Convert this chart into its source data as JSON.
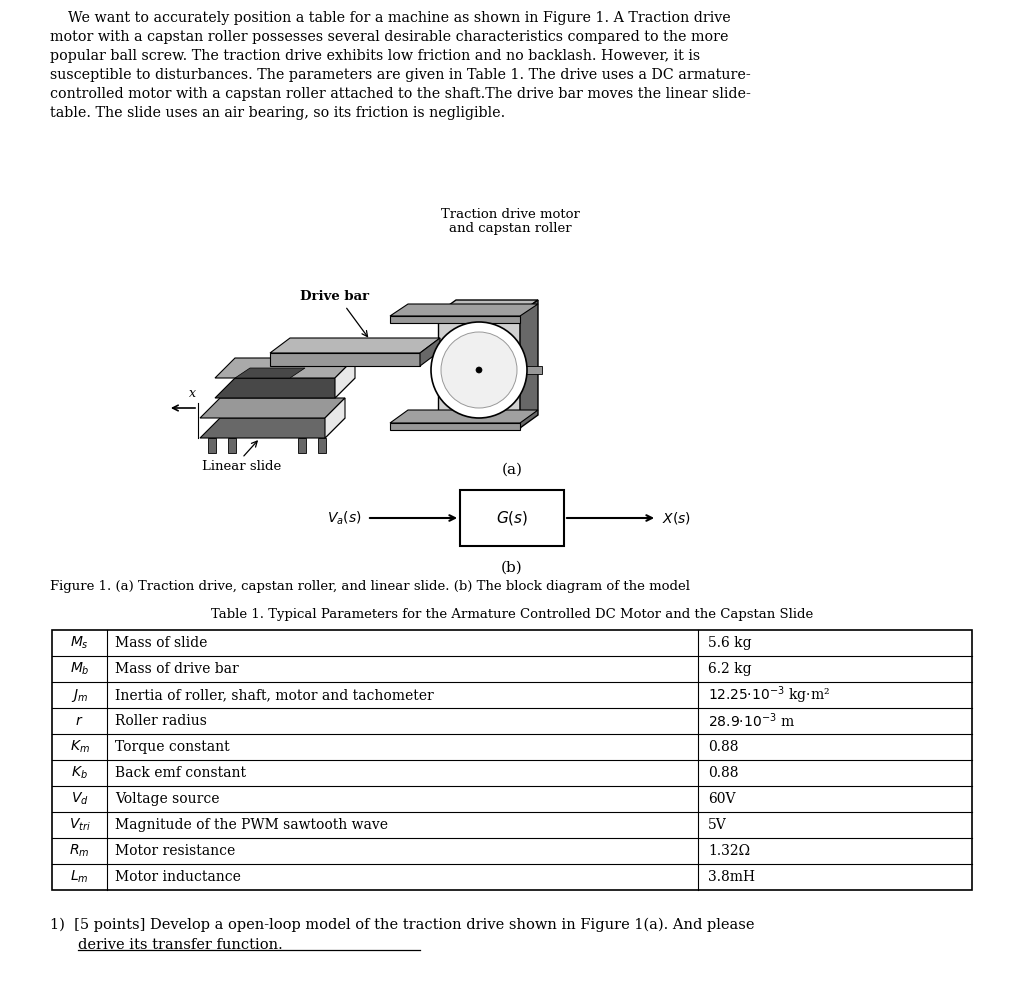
{
  "bg_color": "#ffffff",
  "text_color": "#000000",
  "para_lines": [
    "    We want to accurately position a table for a machine as shown in Figure 1. A Traction drive",
    "motor with a capstan roller possesses several desirable characteristics compared to the more",
    "popular ball screw. The traction drive exhibits low friction and no backlash. However, it is",
    "susceptible to disturbances. The parameters are given in Table 1. The drive uses a DC armature-",
    "controlled motor with a capstan roller attached to the shaft.The drive bar moves the linear slide-",
    "table. The slide uses an air bearing, so its friction is negligible."
  ],
  "traction_line1": "Traction drive motor",
  "traction_line2": "and capstan roller",
  "drive_bar_label": "Drive bar",
  "linear_slide_label": "Linear slide",
  "x_label": "x",
  "label_a": "(a)",
  "label_b": "(b)",
  "fig_caption": "Figure 1. (a) Traction drive, capstan roller, and linear slide. (b) The block diagram of the model",
  "block_input": "$V_a(s)$",
  "block_gs": "$G(s)$",
  "block_output": "$X(s)$",
  "table_title": "Table 1. Typical Parameters for the Armature Controlled DC Motor and the Capstan Slide",
  "table_rows": [
    [
      "$M_s$",
      "Mass of slide",
      "5.6 kg"
    ],
    [
      "$M_b$",
      "Mass of drive bar",
      "6.2 kg"
    ],
    [
      "$J_m$",
      "Inertia of roller, shaft, motor and tachometer",
      "$12.25{\\cdot}10^{-3}$ kg·m²"
    ],
    [
      "$r$",
      "Roller radius",
      "$28.9{\\cdot}10^{-3}$ m"
    ],
    [
      "$K_m$",
      "Torque constant",
      "0.88"
    ],
    [
      "$K_b$",
      "Back emf constant",
      "0.88"
    ],
    [
      "$V_d$",
      "Voltage source",
      "60V"
    ],
    [
      "$V_{tri}$",
      "Magnitude of the PWM sawtooth wave",
      "5V"
    ],
    [
      "$R_m$",
      "Motor resistance",
      "1.32Ω"
    ],
    [
      "$L_m$",
      "Motor inductance",
      "3.8mH"
    ]
  ],
  "question_line1": "1)  [5 points] Develop a open-loop model of the traction drive shown in Figure 1(a). And please",
  "question_line2": "derive its transfer function."
}
